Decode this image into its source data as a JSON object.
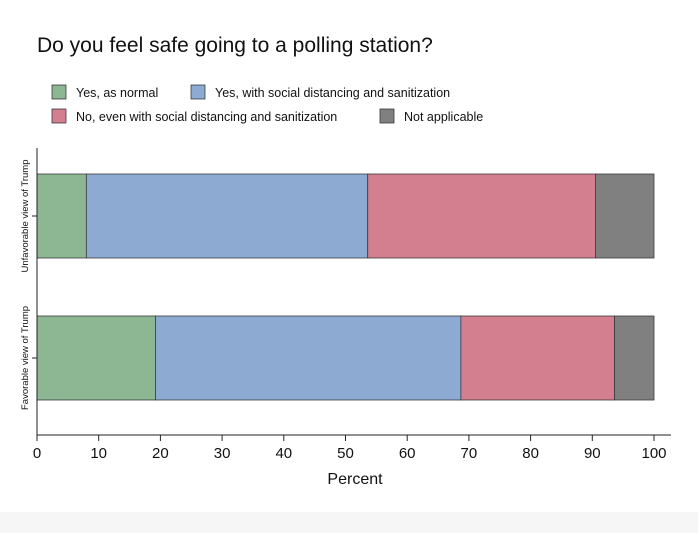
{
  "chart_data": {
    "type": "bar",
    "orientation": "horizontal",
    "stacked": true,
    "title": "Do you feel safe going to a polling station?",
    "xlabel": "Percent",
    "ylabel": "",
    "xlim": [
      0,
      100
    ],
    "xticks": [
      0,
      10,
      20,
      30,
      40,
      50,
      60,
      70,
      80,
      90,
      100
    ],
    "grid": false,
    "legend_position": "top",
    "categories": [
      "Unfavorable view of Trump",
      "Favorable view of Trump"
    ],
    "series": [
      {
        "name": "Yes, as normal",
        "color": "#8db693",
        "values": [
          8.0,
          19.2
        ]
      },
      {
        "name": "Yes, with social distancing and sanitization",
        "color": "#8daad3",
        "values": [
          45.6,
          49.5
        ]
      },
      {
        "name": "No, even with social distancing and sanitization",
        "color": "#d37f8f",
        "values": [
          36.9,
          24.9
        ]
      },
      {
        "name": "Not applicable",
        "color": "#808080",
        "values": [
          9.5,
          6.4
        ]
      }
    ]
  }
}
